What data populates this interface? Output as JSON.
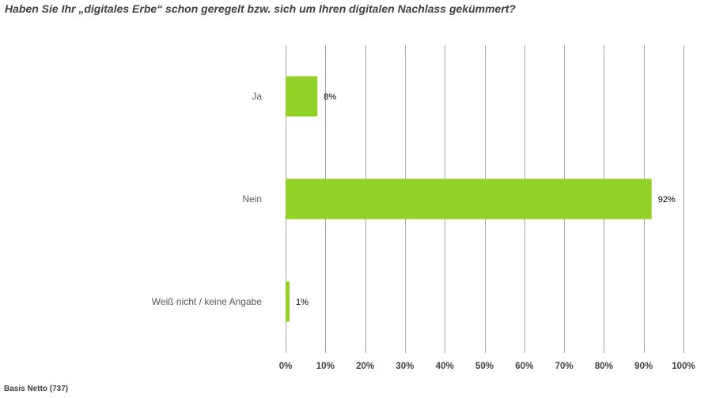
{
  "title": "Haben Sie Ihr „digitales Erbe“ schon geregelt bzw. sich um Ihren digitalen Nachlass gekümmert?",
  "footer": "Basis Netto (737)",
  "chart_data": {
    "type": "bar",
    "orientation": "horizontal",
    "categories": [
      "Ja",
      "Nein",
      "Weiß nicht / keine Angabe"
    ],
    "values": [
      8,
      92,
      1
    ],
    "data_labels": [
      "8%",
      "92%",
      "1%"
    ],
    "xlim": [
      0,
      100
    ],
    "xticks": [
      0,
      10,
      20,
      30,
      40,
      50,
      60,
      70,
      80,
      90,
      100
    ],
    "xtick_labels": [
      "0%",
      "10%",
      "20%",
      "30%",
      "40%",
      "50%",
      "60%",
      "70%",
      "80%",
      "90%",
      "100%"
    ],
    "grid": "vertical",
    "bar_color": "#92D125",
    "grid_color": "#A6A6A6"
  }
}
